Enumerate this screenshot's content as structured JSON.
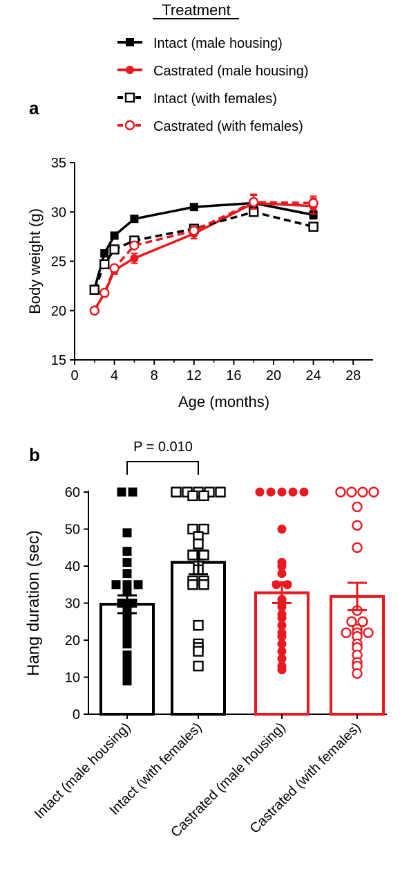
{
  "legend": {
    "title": "Treatment",
    "items": [
      {
        "label": "Intact (male housing)",
        "color": "#000000",
        "marker": "square-filled",
        "dash": false
      },
      {
        "label": "Castrated (male housing)",
        "color": "#e8191f",
        "marker": "circle-filled",
        "dash": false
      },
      {
        "label": "Intact (with females)",
        "color": "#000000",
        "marker": "square-open",
        "dash": true
      },
      {
        "label": "Castrated (with females)",
        "color": "#e8191f",
        "marker": "circle-open",
        "dash": true
      }
    ]
  },
  "chart_data": [
    {
      "panel": "a",
      "type": "line",
      "xlabel": "Age (months)",
      "ylabel": "Body weight (g)",
      "xlim": [
        0,
        30
      ],
      "ylim": [
        15,
        35
      ],
      "xticks": [
        0,
        4,
        8,
        12,
        16,
        20,
        24,
        28
      ],
      "yticks": [
        15,
        20,
        25,
        30,
        35
      ],
      "series": [
        {
          "name": "Intact (male housing)",
          "color": "#000000",
          "marker": "square-filled",
          "dash": false,
          "x": [
            2,
            3,
            4,
            6,
            12,
            18,
            24
          ],
          "y": [
            22.2,
            25.8,
            27.6,
            29.3,
            30.5,
            30.9,
            29.7
          ],
          "err": [
            0.2,
            0.2,
            0.2,
            0.2,
            0.2,
            0.3,
            0.4
          ]
        },
        {
          "name": "Castrated (male housing)",
          "color": "#e8191f",
          "marker": "circle-filled",
          "dash": false,
          "x": [
            2,
            3,
            4,
            6,
            12,
            18,
            24
          ],
          "y": [
            20.1,
            21.7,
            24.1,
            25.3,
            27.8,
            30.9,
            30.6
          ],
          "err": [
            0.2,
            0.3,
            0.4,
            0.5,
            0.5,
            0.9,
            0.8
          ]
        },
        {
          "name": "Intact (with females)",
          "color": "#000000",
          "marker": "square-open",
          "dash": true,
          "x": [
            2,
            3,
            4,
            6,
            12,
            18,
            24
          ],
          "y": [
            22.1,
            24.7,
            26.2,
            27.1,
            28.3,
            30.0,
            28.5
          ],
          "err": [
            0.2,
            0.3,
            0.3,
            0.3,
            0.3,
            0.3,
            0.3
          ]
        },
        {
          "name": "Castrated (with females)",
          "color": "#e8191f",
          "marker": "circle-open",
          "dash": true,
          "x": [
            2,
            3,
            4,
            6,
            12,
            18,
            24
          ],
          "y": [
            20.0,
            21.8,
            24.3,
            26.6,
            28.1,
            31.0,
            30.9
          ],
          "err": [
            0.2,
            0.3,
            0.3,
            0.3,
            0.4,
            0.7,
            0.7
          ]
        }
      ]
    },
    {
      "panel": "b",
      "type": "bar",
      "ylabel": "Hang duration (sec)",
      "ylim": [
        0,
        60
      ],
      "yticks": [
        0,
        10,
        20,
        30,
        40,
        50,
        60
      ],
      "annotation": "P = 0.010",
      "categories": [
        "Intact (male housing)",
        "Intact (with females)",
        "Castrated (male housing)",
        "Castrated (with females)"
      ],
      "bars": [
        {
          "category": "Intact (male housing)",
          "mean": 29.7,
          "sem": 2.4,
          "color": "#000000",
          "marker": "square-filled",
          "points": [
            60,
            60,
            49,
            44,
            41,
            38,
            35,
            35,
            35,
            34,
            33,
            30,
            30,
            29,
            27,
            26,
            24,
            22,
            21,
            19,
            16,
            15,
            13,
            11,
            10,
            9
          ]
        },
        {
          "category": "Intact (with females)",
          "mean": 41.0,
          "sem": 3.2,
          "color": "#000000",
          "marker": "square-open",
          "points": [
            60,
            60,
            60,
            60,
            60,
            59,
            59,
            50,
            50,
            48,
            46,
            43,
            43,
            40,
            39,
            36,
            36,
            35,
            35,
            24,
            19,
            18,
            17,
            13
          ]
        },
        {
          "category": "Castrated (male housing)",
          "mean": 32.8,
          "sem": 2.8,
          "color": "#e8191f",
          "marker": "circle-filled",
          "points": [
            60,
            60,
            60,
            60,
            60,
            50,
            41,
            40,
            38,
            35,
            35,
            31,
            30,
            29,
            27,
            26,
            24,
            22,
            21,
            19,
            17,
            15,
            13,
            12
          ]
        },
        {
          "category": "Castrated (with females)",
          "mean": 31.8,
          "sem": 3.7,
          "color": "#e8191f",
          "marker": "circle-open",
          "points": [
            60,
            60,
            60,
            60,
            56,
            51,
            45,
            28,
            25,
            25,
            23,
            22,
            22,
            22,
            21,
            19,
            18,
            16,
            14,
            13,
            11
          ]
        }
      ]
    }
  ],
  "panels": {
    "a_label": "a",
    "b_label": "b"
  }
}
